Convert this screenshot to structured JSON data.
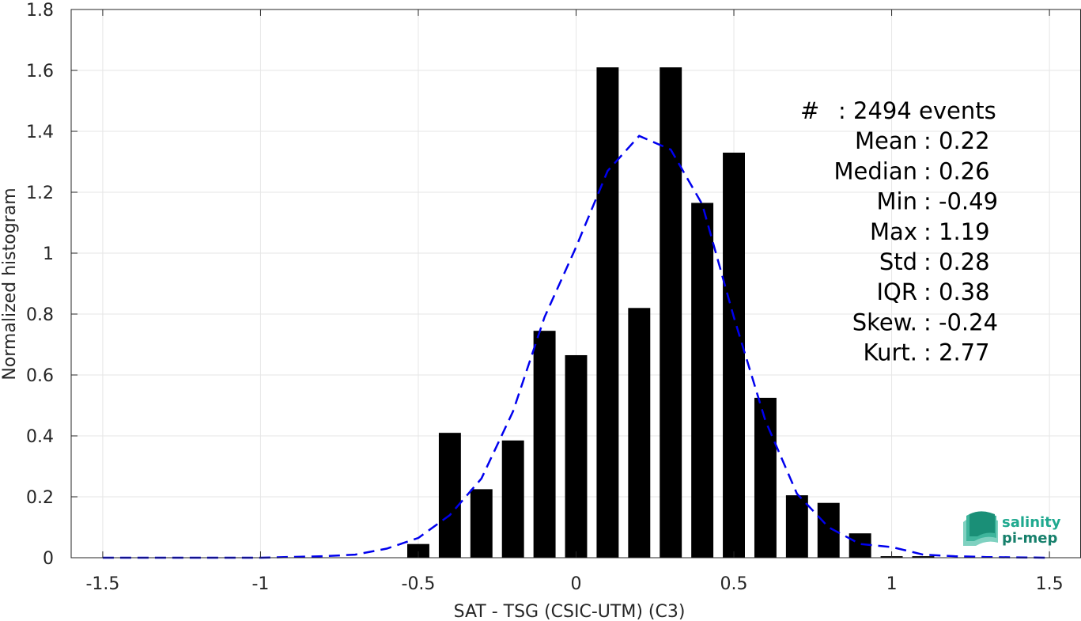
{
  "chart_data": {
    "type": "bar",
    "xlabel": "SAT - TSG (CSIC-UTM) (C3)",
    "ylabel": "Normalized histogram",
    "xlim": [
      -1.6,
      1.6
    ],
    "ylim": [
      0,
      1.8
    ],
    "xticks": [
      -1.5,
      -1,
      -0.5,
      0,
      0.5,
      1,
      1.5
    ],
    "xtick_labels": [
      "-1.5",
      "-1",
      "-0.5",
      "0",
      "0.5",
      "1",
      "1.5"
    ],
    "yticks": [
      0,
      0.2,
      0.4,
      0.6,
      0.8,
      1,
      1.2,
      1.4,
      1.6,
      1.8
    ],
    "ytick_labels": [
      "0",
      "0.2",
      "0.4",
      "0.6",
      "0.8",
      "1",
      "1.2",
      "1.4",
      "1.6",
      "1.8"
    ],
    "grid": true,
    "bar_color": "#000000",
    "bar_width": 0.07,
    "bars": [
      {
        "x": -0.5,
        "y": 0.045
      },
      {
        "x": -0.4,
        "y": 0.41
      },
      {
        "x": -0.3,
        "y": 0.225
      },
      {
        "x": -0.2,
        "y": 0.385
      },
      {
        "x": -0.1,
        "y": 0.745
      },
      {
        "x": 0.0,
        "y": 0.665
      },
      {
        "x": 0.1,
        "y": 1.61
      },
      {
        "x": 0.2,
        "y": 0.82
      },
      {
        "x": 0.3,
        "y": 1.61
      },
      {
        "x": 0.4,
        "y": 1.165
      },
      {
        "x": 0.5,
        "y": 1.33
      },
      {
        "x": 0.6,
        "y": 0.525
      },
      {
        "x": 0.7,
        "y": 0.205
      },
      {
        "x": 0.8,
        "y": 0.18
      },
      {
        "x": 0.9,
        "y": 0.08
      },
      {
        "x": 1.0,
        "y": 0.005
      },
      {
        "x": 1.1,
        "y": 0.005
      }
    ],
    "fit_curve": {
      "color": "#0000ee",
      "style": "dashed",
      "points": [
        [
          -1.5,
          0.0
        ],
        [
          -1.3,
          0.0
        ],
        [
          -1.0,
          0.0
        ],
        [
          -0.8,
          0.005
        ],
        [
          -0.7,
          0.01
        ],
        [
          -0.6,
          0.03
        ],
        [
          -0.5,
          0.065
        ],
        [
          -0.4,
          0.14
        ],
        [
          -0.3,
          0.26
        ],
        [
          -0.2,
          0.48
        ],
        [
          -0.1,
          0.79
        ],
        [
          0.0,
          1.02
        ],
        [
          0.1,
          1.27
        ],
        [
          0.2,
          1.385
        ],
        [
          0.3,
          1.34
        ],
        [
          0.4,
          1.16
        ],
        [
          0.5,
          0.79
        ],
        [
          0.6,
          0.45
        ],
        [
          0.7,
          0.21
        ],
        [
          0.8,
          0.1
        ],
        [
          0.9,
          0.045
        ],
        [
          1.0,
          0.035
        ],
        [
          1.1,
          0.01
        ],
        [
          1.2,
          0.005
        ],
        [
          1.3,
          0.002
        ],
        [
          1.5,
          0.0
        ]
      ]
    },
    "stats": [
      {
        "label": "#",
        "value": ": 2494 events"
      },
      {
        "label": "Mean",
        "value": ": 0.22"
      },
      {
        "label": "Median",
        "value": ": 0.26"
      },
      {
        "label": "Min",
        "value": ": -0.49"
      },
      {
        "label": "Max",
        "value": ": 1.19"
      },
      {
        "label": "Std",
        "value": ": 0.28"
      },
      {
        "label": "IQR",
        "value": ": 0.38"
      },
      {
        "label": "Skew.",
        "value": ": -0.24"
      },
      {
        "label": "Kurt.",
        "value": ": 2.77"
      }
    ]
  },
  "logo": {
    "line1": "salinity",
    "line2": "pi-mep",
    "color_main": "#1fa98f",
    "color_dark": "#17806c"
  }
}
